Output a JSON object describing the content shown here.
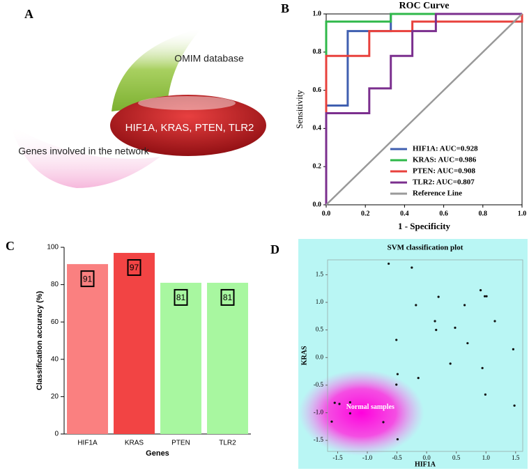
{
  "panel_labels": [
    "A",
    "B",
    "C",
    "D"
  ],
  "diagram": {
    "labels": [
      "OMIM database",
      "Genes involved in the network"
    ],
    "intersection": "HIF1A, KRAS, PTEN, TLR2"
  },
  "chart_data": [
    {
      "type": "line",
      "title": "ROC Curve",
      "x_label": "1 - Specificity",
      "y_label": "Sensitivity",
      "xlim": [
        0,
        1
      ],
      "ylim": [
        0,
        1
      ],
      "xticks": [
        {
          "value": 0,
          "label": "0.0"
        },
        0.2,
        0.4,
        0.6,
        0.8,
        {
          "value": 1,
          "label": "1.0"
        }
      ],
      "yticks": [
        {
          "value": 0,
          "label": "0.0"
        },
        0.2,
        0.4,
        0.6,
        0.8,
        {
          "value": 1,
          "label": "1.0"
        }
      ],
      "legend": "lower right",
      "series": [
        {
          "name": "HIF1A: AUC=0.928",
          "color": "#3f5fb0",
          "x": [
            0,
            0,
            0.11,
            0.11,
            0.33,
            0.33,
            1
          ],
          "values": [
            0,
            0.52,
            0.52,
            0.91,
            0.91,
            1,
            1
          ]
        },
        {
          "name": "KRAS: AUC=0.986",
          "color": "#2fb84a",
          "x": [
            0,
            0,
            0.33,
            0.33,
            1
          ],
          "values": [
            0,
            0.96,
            0.96,
            1,
            1
          ]
        },
        {
          "name": "PTEN: AUC=0.908",
          "color": "#e8413c",
          "x": [
            0,
            0,
            0.22,
            0.22,
            0.44,
            0.44,
            1,
            1
          ],
          "values": [
            0,
            0.78,
            0.78,
            0.91,
            0.91,
            0.96,
            0.96,
            1
          ]
        },
        {
          "name": "TLR2: AUC=0.807",
          "color": "#7b2f8e",
          "x": [
            0,
            0,
            0.22,
            0.22,
            0.33,
            0.33,
            0.44,
            0.44,
            0.56,
            0.56,
            1
          ],
          "values": [
            0,
            0.48,
            0.48,
            0.61,
            0.61,
            0.78,
            0.78,
            0.91,
            0.91,
            1,
            1
          ]
        },
        {
          "name": "Reference Line",
          "color": "#999999",
          "x": [
            0,
            1
          ],
          "values": [
            0,
            1
          ]
        }
      ]
    },
    {
      "type": "bar",
      "x_label": "Genes",
      "y_label": "Classification accuracy (%)",
      "categories": [
        "HIF1A",
        "KRAS",
        "PTEN",
        "TLR2"
      ],
      "values": [
        91,
        97,
        81,
        81
      ],
      "colors": [
        "#fa8080",
        "#f24444",
        "#a8f7a0",
        "#a8f7a0"
      ],
      "ylim": [
        0,
        100
      ],
      "yticks": [
        0,
        20,
        40,
        60,
        80,
        100
      ]
    },
    {
      "type": "scatter",
      "title": "SVM classification plot",
      "x_label": "HIF1A",
      "y_label": "KRAS",
      "annotation": "Normal samples",
      "background": "#b9f6f4",
      "color": "#111111",
      "xlim": [
        -1.67,
        1.62
      ],
      "ylim": [
        -1.7,
        1.77
      ],
      "xticks": [
        -1.5,
        {
          "value": -1,
          "label": "-1.0"
        },
        -0.5,
        {
          "value": 0,
          "label": "0.0"
        },
        0.5,
        {
          "value": 1,
          "label": "1.0"
        },
        1.5
      ],
      "yticks": [
        -1.5,
        {
          "value": -1,
          "label": "-1.0"
        },
        -0.5,
        {
          "value": 0,
          "label": "0.0"
        },
        0.5,
        {
          "value": 1,
          "label": "1.0"
        },
        1.5
      ],
      "x": [
        -0.64,
        -0.25,
        -0.18,
        0.2,
        0.14,
        0.16,
        0.48,
        0.64,
        0.98,
        1.01,
        0.91,
        1.15,
        0.69,
        0.4,
        0.94,
        1.46,
        0.99,
        1.48,
        -0.14,
        -0.49,
        -0.51,
        -0.51,
        -1.55,
        -1.47,
        -1.29,
        -1.6,
        -1.29,
        -0.73,
        -0.49
      ],
      "values": [
        1.7,
        1.63,
        0.95,
        1.1,
        0.66,
        0.5,
        0.54,
        0.95,
        1.11,
        1.11,
        1.22,
        0.66,
        0.26,
        -0.11,
        -0.19,
        0.15,
        -0.67,
        -0.87,
        -0.37,
        -0.3,
        0.32,
        -0.49,
        -0.82,
        -0.84,
        -0.81,
        -1.16,
        -1.01,
        -1.17,
        -1.48
      ]
    }
  ]
}
